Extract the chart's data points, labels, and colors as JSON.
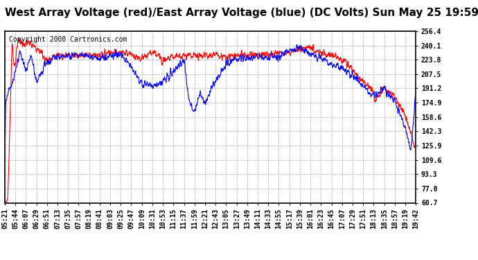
{
  "title": "West Array Voltage (red)/East Array Voltage (blue) (DC Volts) Sun May 25 19:59",
  "copyright": "Copyright 2008 Cartronics.com",
  "yticks": [
    256.4,
    240.1,
    223.8,
    207.5,
    191.2,
    174.9,
    158.6,
    142.3,
    125.9,
    109.6,
    93.3,
    77.0,
    60.7
  ],
  "ylim": [
    60.7,
    256.4
  ],
  "xtick_labels": [
    "05:21",
    "05:44",
    "06:07",
    "06:29",
    "06:51",
    "07:13",
    "07:35",
    "07:57",
    "08:19",
    "08:41",
    "09:03",
    "09:25",
    "09:47",
    "10:09",
    "10:31",
    "10:53",
    "11:15",
    "11:37",
    "11:59",
    "12:21",
    "12:43",
    "13:05",
    "13:27",
    "13:49",
    "14:11",
    "14:33",
    "14:55",
    "15:17",
    "15:39",
    "16:01",
    "16:23",
    "16:45",
    "17:07",
    "17:29",
    "17:51",
    "18:13",
    "18:35",
    "18:57",
    "19:19",
    "19:42"
  ],
  "red_color": "#FF0000",
  "blue_color": "#0000FF",
  "grid_color": "#AAAAAA",
  "bg_color": "#FFFFFF",
  "title_fontsize": 11,
  "copyright_fontsize": 7,
  "tick_fontsize": 7,
  "linewidth": 0.8
}
